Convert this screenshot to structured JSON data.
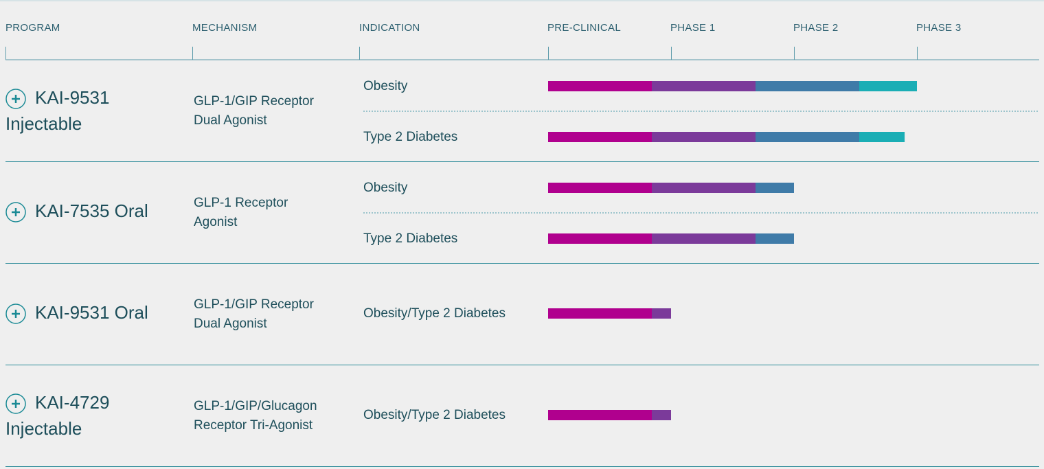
{
  "header": {
    "columns": [
      "PROGRAM",
      "MECHANISM",
      "INDICATION"
    ],
    "phases": [
      "PRE-CLINICAL",
      "PHASE 1",
      "PHASE 2",
      "PHASE 3"
    ]
  },
  "programs": [
    {
      "name": [
        "KAI-9531",
        "Injectable"
      ],
      "mechanism": [
        "GLP-1/GIP Receptor",
        "Dual Agonist"
      ],
      "indications": [
        {
          "name": "Obesity",
          "progress": 3.0
        },
        {
          "name": "Type 2 Diabetes",
          "progress": 2.9
        }
      ]
    },
    {
      "name": [
        "KAI-7535 Oral"
      ],
      "mechanism": [
        "GLP-1 Receptor",
        "Agonist"
      ],
      "indications": [
        {
          "name": "Obesity",
          "progress": 2.0
        },
        {
          "name": "Type 2 Diabetes",
          "progress": 2.0
        }
      ]
    },
    {
      "name": [
        "KAI-9531 Oral"
      ],
      "mechanism": [
        "GLP-1/GIP Receptor",
        "Dual Agonist"
      ],
      "indications": [
        {
          "name": "Obesity/Type 2 Diabetes",
          "progress": 1.0
        }
      ]
    },
    {
      "name": [
        "KAI-4729",
        "Injectable"
      ],
      "mechanism": [
        "GLP-1/GIP/Glucagon",
        "Receptor Tri-Agonist"
      ],
      "indications": [
        {
          "name": "Obesity/Type 2 Diabetes",
          "progress": 1.0
        }
      ]
    }
  ]
}
